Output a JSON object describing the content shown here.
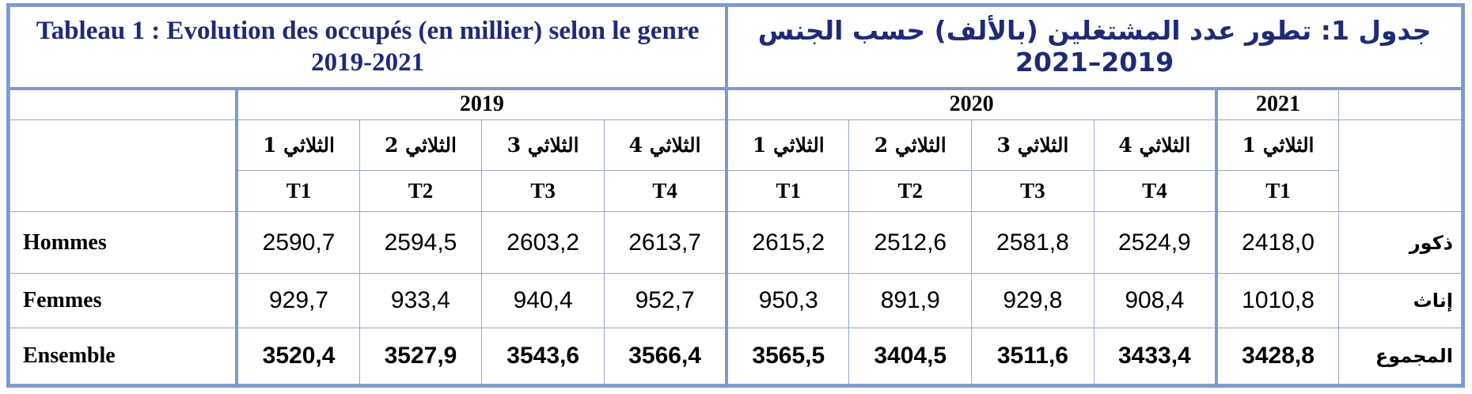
{
  "title": {
    "fr": "Tableau 1 : Evolution des occupés (en millier) selon le genre 2019-2021",
    "ar_line1": "جدول 1: تطور عدد المشتغلين (بالألف) حسب الجنس",
    "ar_line2": "2021–2019"
  },
  "years": [
    "2019",
    "2020",
    "2021"
  ],
  "quarters": [
    {
      "ar": "الثلاثي 1",
      "code": "T1"
    },
    {
      "ar": "الثلاثي 2",
      "code": "T2"
    },
    {
      "ar": "الثلاثي 3",
      "code": "T3"
    },
    {
      "ar": "الثلاثي 4",
      "code": "T4"
    },
    {
      "ar": "الثلاثي 1",
      "code": "T1"
    },
    {
      "ar": "الثلاثي 2",
      "code": "T2"
    },
    {
      "ar": "الثلاثي 3",
      "code": "T3"
    },
    {
      "ar": "الثلاثي 4",
      "code": "T4"
    },
    {
      "ar": "الثلاثي 1",
      "code": "T1"
    }
  ],
  "rows": [
    {
      "fr": "Hommes",
      "ar": "ذكور",
      "values": [
        "2590,7",
        "2594,5",
        "2603,2",
        "2613,7",
        "2615,2",
        "2512,6",
        "2581,8",
        "2524,9",
        "2418,0"
      ]
    },
    {
      "fr": "Femmes",
      "ar": "إناث",
      "values": [
        "929,7",
        "933,4",
        "940,4",
        "952,7",
        "950,3",
        "891,9",
        "929,8",
        "908,4",
        "1010,8"
      ]
    },
    {
      "fr": "Ensemble",
      "ar": "المجموع",
      "values": [
        "3520,4",
        "3527,9",
        "3543,6",
        "3566,4",
        "3565,5",
        "3404,5",
        "3511,6",
        "3433,4",
        "3428,8"
      ]
    }
  ]
}
